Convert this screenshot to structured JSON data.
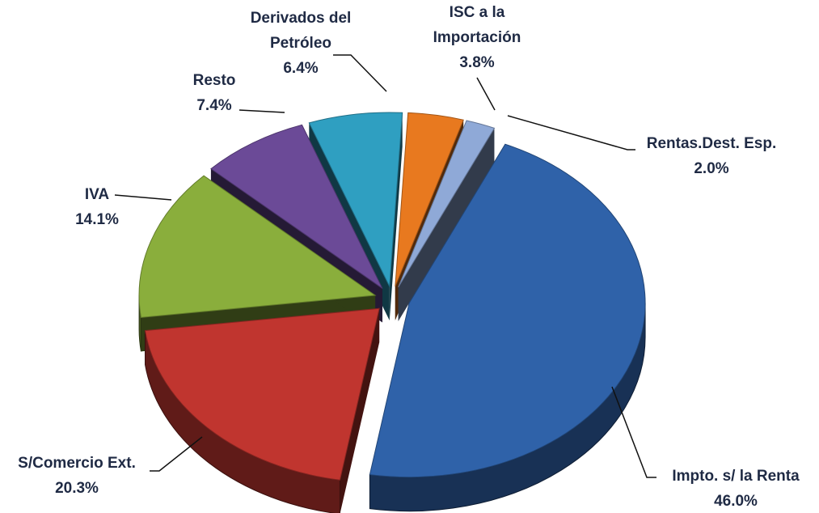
{
  "chart_data": {
    "type": "pie",
    "categories": [
      "Impto. s/ la Renta",
      "S/Comercio Ext.",
      "IVA",
      "Resto",
      "Derivados del Petróleo",
      "ISC a la Importación",
      "Rentas.Dest. Esp."
    ],
    "values": [
      46.0,
      20.3,
      14.1,
      7.4,
      6.4,
      3.8,
      2.0
    ],
    "value_labels": [
      "46.0%",
      "20.3%",
      "14.1%",
      "7.4%",
      "6.4%",
      "3.8%",
      "2.0%"
    ],
    "colors": [
      "#2f62a9",
      "#c0352f",
      "#8aae3c",
      "#6b4a97",
      "#2f9fc1",
      "#e8791f",
      "#8fa9d7"
    ]
  }
}
